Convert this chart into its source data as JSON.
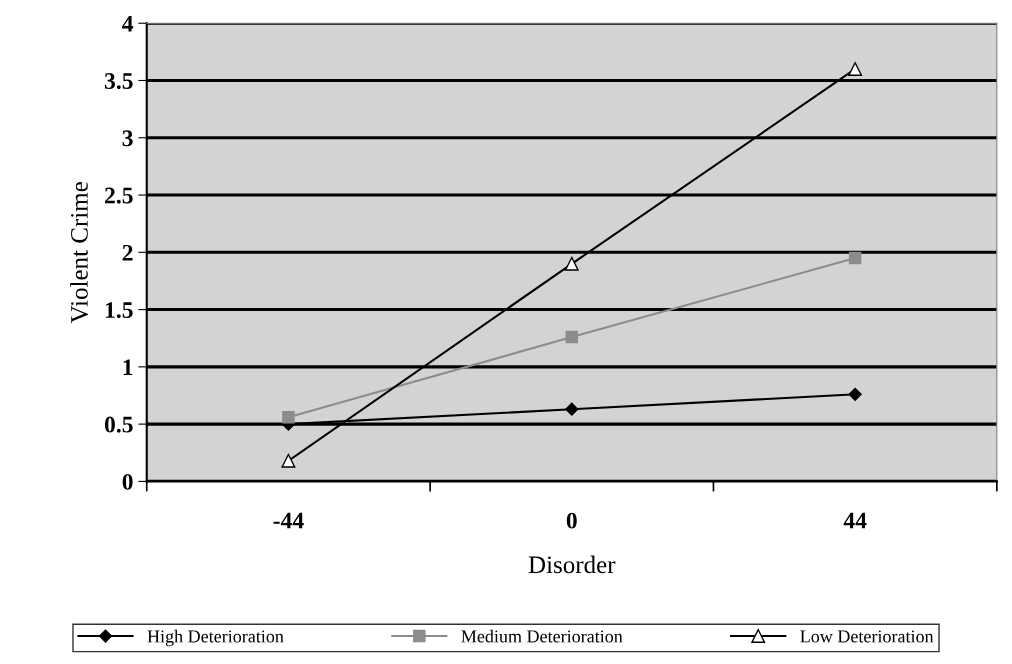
{
  "chart_data": {
    "type": "line",
    "xlabel": "Disorder",
    "ylabel": "Violent Crime",
    "categories": [
      "-44",
      "0",
      "44"
    ],
    "series": [
      {
        "name": "High Deterioration",
        "color": "#000000",
        "marker": "diamond",
        "values": [
          0.5,
          0.63,
          0.76
        ]
      },
      {
        "name": "Medium Deterioration",
        "color": "#8c8c8c",
        "marker": "square",
        "values": [
          0.56,
          1.26,
          1.95
        ]
      },
      {
        "name": "Low Deterioration",
        "color": "#000000",
        "marker": "triangle",
        "values": [
          0.18,
          1.9,
          3.6
        ]
      }
    ],
    "ylim": [
      0,
      4
    ],
    "yticks": [
      0,
      0.5,
      1,
      1.5,
      2,
      2.5,
      3,
      3.5,
      4
    ],
    "grid": "y",
    "legend": "bottom"
  }
}
